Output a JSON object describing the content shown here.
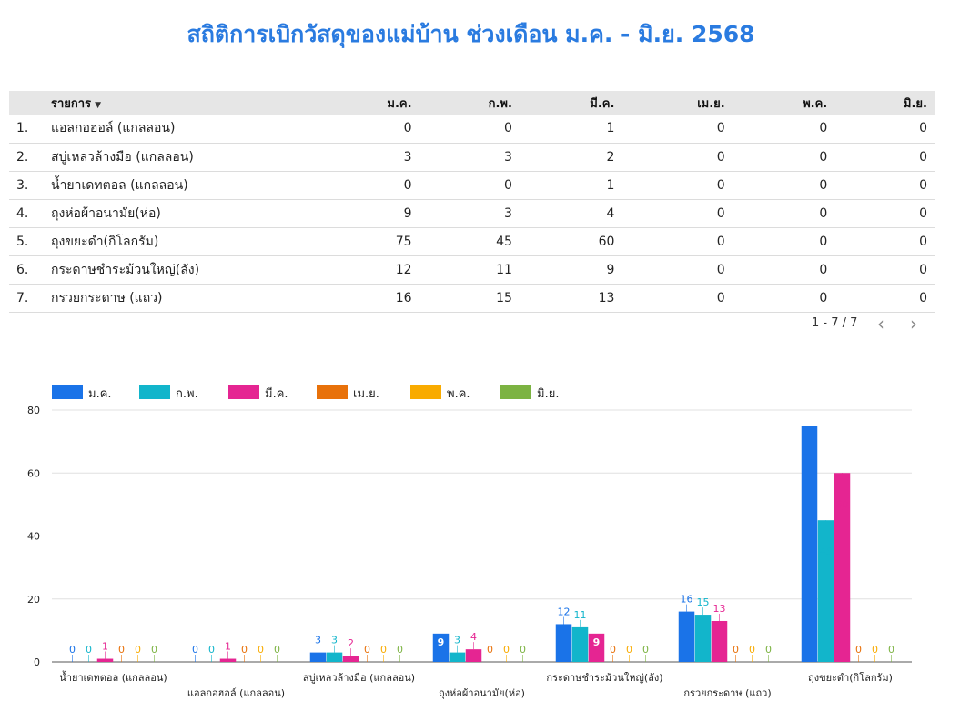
{
  "title": "สถิติการเบิกวัสดุของแม่บ้าน ช่วงเดือน ม.ค. - มิ.ย. 2568",
  "table": {
    "headers": [
      "รายการ",
      "ม.ค.",
      "ก.พ.",
      "มี.ค.",
      "เม.ย.",
      "พ.ค.",
      "มิ.ย."
    ],
    "rows": [
      {
        "idx": "1.",
        "name": "แอลกอฮอล์ (แกลลอน)",
        "values": [
          "0",
          "0",
          "1",
          "0",
          "0",
          "0"
        ]
      },
      {
        "idx": "2.",
        "name": "สบู่เหลวล้างมือ (แกลลอน)",
        "values": [
          "3",
          "3",
          "2",
          "0",
          "0",
          "0"
        ]
      },
      {
        "idx": "3.",
        "name": "น้ำยาเดทตอล (แกลลอน)",
        "values": [
          "0",
          "0",
          "1",
          "0",
          "0",
          "0"
        ]
      },
      {
        "idx": "4.",
        "name": "ถุงห่อผ้าอนามัย(ห่อ)",
        "values": [
          "9",
          "3",
          "4",
          "0",
          "0",
          "0"
        ]
      },
      {
        "idx": "5.",
        "name": "ถุงขยะดำ(กิโลกรัม)",
        "values": [
          "75",
          "45",
          "60",
          "0",
          "0",
          "0"
        ]
      },
      {
        "idx": "6.",
        "name": "กระดาษชำระม้วนใหญ่(ลัง)",
        "values": [
          "12",
          "11",
          "9",
          "0",
          "0",
          "0"
        ]
      },
      {
        "idx": "7.",
        "name": "กรวยกระดาษ (แถว)",
        "values": [
          "16",
          "15",
          "13",
          "0",
          "0",
          "0"
        ]
      }
    ]
  },
  "pager": {
    "range": "1 - 7 / 7",
    "prev_icon": "chevron-left",
    "next_icon": "chevron-right"
  },
  "chart_data": {
    "type": "bar",
    "categories": [
      "น้ำยาเดทตอล (แกลลอน)",
      "แอลกอฮอล์ (แกลลอน)",
      "สบู่เหลวล้างมือ (แกลลอน)",
      "ถุงห่อผ้าอนามัย(ห่อ)",
      "กระดาษชำระม้วนใหญ่(ลัง)",
      "กรวยกระดาษ (แถว)",
      "ถุงขยะดำ(กิโลกรัม)"
    ],
    "series": [
      {
        "name": "ม.ค.",
        "color": "#1a73e8",
        "values": [
          0,
          0,
          3,
          9,
          12,
          16,
          75
        ]
      },
      {
        "name": "ก.พ.",
        "color": "#12b5cb",
        "values": [
          0,
          0,
          3,
          3,
          11,
          15,
          45
        ]
      },
      {
        "name": "มี.ค.",
        "color": "#e52592",
        "values": [
          1,
          1,
          2,
          4,
          9,
          13,
          60
        ]
      },
      {
        "name": "เม.ย.",
        "color": "#e8710a",
        "values": [
          0,
          0,
          0,
          0,
          0,
          0,
          0
        ]
      },
      {
        "name": "พ.ค.",
        "color": "#f9ab00",
        "values": [
          0,
          0,
          0,
          0,
          0,
          0,
          0
        ]
      },
      {
        "name": "มิ.ย.",
        "color": "#7cb342",
        "values": [
          0,
          0,
          0,
          0,
          0,
          0,
          0
        ]
      }
    ],
    "ylim": [
      0,
      80
    ],
    "yticks": [
      0,
      20,
      40,
      60,
      80
    ],
    "grid": true,
    "legend": "top-left"
  }
}
